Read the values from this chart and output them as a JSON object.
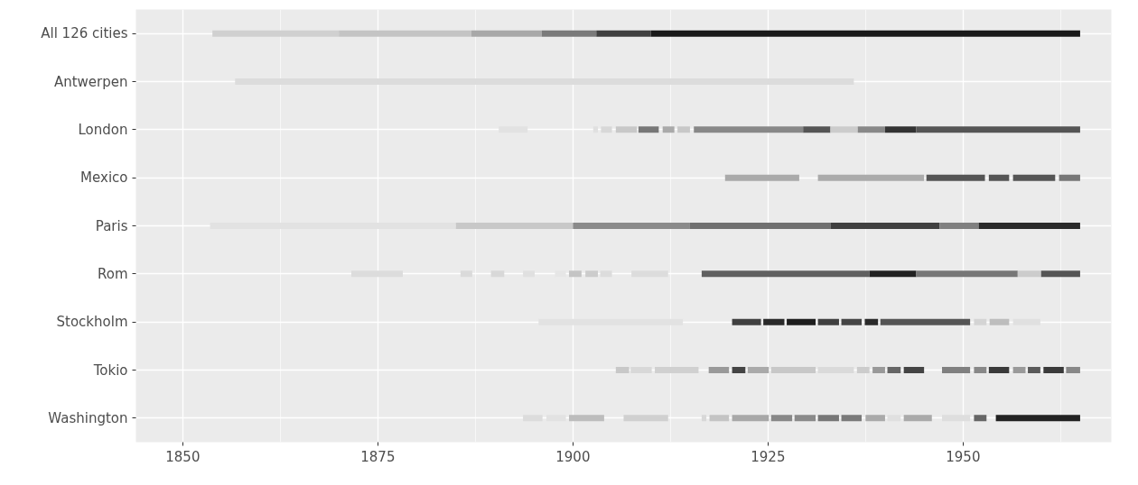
{
  "chart_data": {
    "type": "bar",
    "orientation": "horizontal",
    "grid": true,
    "categories": [
      "All 126 cities",
      "Antwerpen",
      "London",
      "Mexico",
      "Paris",
      "Rom",
      "Stockholm",
      "Tokio",
      "Washington"
    ],
    "xlim": [
      1844,
      1969
    ],
    "xticks": [
      1850,
      1875,
      1900,
      1925,
      1950
    ],
    "series": [
      {
        "base": [
          1853.8,
          1856.7,
          1890.5,
          1919.5,
          1853.5,
          1871.6,
          1895.6,
          1905.5,
          1893.6
        ],
        "values": [
          16.2,
          79.3,
          3.7,
          9.5,
          31.5,
          6.6,
          18.5,
          1.7,
          2.5
        ],
        "colors": [
          "#d0d0d0",
          "#dcdcdc",
          "#e2e2e2",
          "#aaaaaa",
          "#e2e2e2",
          "#dcdcdc",
          "#e2e2e2",
          "#c8c8c8",
          "#dcdcdc"
        ]
      },
      {
        "base": [
          1870,
          null,
          1902.6,
          1931.4,
          1885,
          1885.6,
          1920.4,
          1907.4,
          1896.6
        ],
        "values": [
          17,
          null,
          0.6,
          13.6,
          15,
          1.5,
          3.7,
          2.7,
          2.5
        ],
        "colors": [
          "#c4c4c4",
          null,
          "#e0e0e0",
          "#ababab",
          "#c8c8c8",
          "#dadada",
          "#404040",
          "#d8d8d8",
          "#e2e2e2"
        ]
      },
      {
        "base": [
          1887,
          null,
          1903.6,
          1945.3,
          1900,
          1889.5,
          1924.4,
          1910.5,
          1899.5
        ],
        "values": [
          9,
          null,
          1.4,
          7.5,
          15,
          1.7,
          2.7,
          5.6,
          4.5
        ],
        "colors": [
          "#a8a8a8",
          null,
          "#d8d8d8",
          "#555555",
          "#8a8a8a",
          "#d8d8d8",
          "#2a2a2a",
          "#d0d0d0",
          "#bdbdbd"
        ]
      },
      {
        "base": [
          1896,
          null,
          1905.5,
          1953.3,
          1915,
          1893.6,
          1927.4,
          1917.4,
          1906.5
        ],
        "values": [
          7,
          null,
          2.7,
          2.6,
          18,
          1.5,
          3.7,
          2.6,
          5.7
        ],
        "colors": [
          "#7a7a7a",
          null,
          "#c8c8c8",
          "#555555",
          "#707070",
          "#e0e0e0",
          "#1e1e1e",
          "#999999",
          "#d0d0d0"
        ]
      },
      {
        "base": [
          1903,
          null,
          1908.4,
          1956.4,
          1933,
          1897.7,
          1931.4,
          1920.4,
          1916.5
        ],
        "values": [
          7,
          null,
          2.6,
          5.4,
          14,
          1.4,
          2.7,
          1.7,
          0.6
        ],
        "colors": [
          "#404040",
          null,
          "#777777",
          "#555555",
          "#404040",
          "#e6e6e6",
          "#404040",
          "#444444",
          "#d8d8d8"
        ]
      },
      {
        "base": [
          1910,
          null,
          1911.5,
          1962.3,
          1947,
          1899.5,
          1934.4,
          1922.4,
          1917.5
        ],
        "values": [
          55,
          null,
          1.5,
          2.7,
          5,
          1.6,
          2.6,
          2.7,
          2.5
        ],
        "colors": [
          "#1a1a1a",
          null,
          "#aaaaaa",
          "#777777",
          "#808080",
          "#c4c4c4",
          "#454545",
          "#aaaaaa",
          "#c4c4c4"
        ]
      },
      {
        "base": [
          null,
          null,
          1913.4,
          null,
          1952,
          1901.6,
          1937.4,
          1925.4,
          1920.4
        ],
        "values": [
          null,
          null,
          1.6,
          null,
          13,
          1.6,
          1.7,
          5.7,
          4.7
        ],
        "colors": [
          null,
          null,
          "#c8c8c8",
          null,
          "#2a2a2a",
          "#cccccc",
          "#2a2a2a",
          "#c8c8c8",
          "#a8a8a8"
        ]
      },
      {
        "base": [
          null,
          null,
          1915.5,
          null,
          null,
          1903.5,
          1939.4,
          1931.4,
          1925.4
        ],
        "values": [
          null,
          null,
          14,
          null,
          null,
          1.5,
          11.5,
          4.6,
          2.7
        ],
        "colors": [
          null,
          null,
          "#888888",
          null,
          null,
          "#dcdcdc",
          "#555555",
          "#dadada",
          "#888888"
        ]
      },
      {
        "base": [
          null,
          null,
          1929.5,
          null,
          null,
          1907.5,
          1951.4,
          1936.4,
          1928.4
        ],
        "values": [
          null,
          null,
          3.5,
          null,
          null,
          4.7,
          1.6,
          1.6,
          2.7
        ],
        "colors": [
          null,
          null,
          "#555555",
          null,
          null,
          "#dcdcdc",
          "#d4d4d4",
          "#cccccc",
          "#8a8a8a"
        ]
      },
      {
        "base": [
          null,
          null,
          1933,
          null,
          null,
          1916.5,
          1953.4,
          1938.4,
          1931.4
        ],
        "values": [
          null,
          null,
          3.5,
          null,
          null,
          21.5,
          2.5,
          1.6,
          2.7
        ],
        "colors": [
          null,
          null,
          "#cccccc",
          null,
          null,
          "#606060",
          "#bdbdbd",
          "#999999",
          "#777777"
        ]
      },
      {
        "base": [
          null,
          null,
          1936.5,
          null,
          null,
          1938,
          1956.4,
          1940.3,
          1934.4
        ],
        "values": [
          null,
          null,
          3.5,
          null,
          null,
          6,
          3.5,
          1.7,
          2.6
        ],
        "colors": [
          null,
          null,
          "#888888",
          null,
          null,
          "#222222",
          "#e0e0e0",
          "#666666",
          "#7a7a7a"
        ]
      },
      {
        "base": [
          null,
          null,
          1940,
          null,
          null,
          1944,
          null,
          1942.4,
          1937.5
        ],
        "values": [
          null,
          null,
          4,
          null,
          null,
          13,
          null,
          2.6,
          2.5
        ],
        "colors": [
          null,
          null,
          "#333333",
          null,
          null,
          "#777777",
          null,
          "#444444",
          "#aaaaaa"
        ]
      },
      {
        "base": [
          null,
          null,
          1944,
          null,
          null,
          1957,
          null,
          1947.3,
          1940.3
        ],
        "values": [
          null,
          null,
          21,
          null,
          null,
          3,
          null,
          3.6,
          1.7
        ],
        "colors": [
          null,
          null,
          "#555555",
          null,
          null,
          "#cccccc",
          null,
          "#808080",
          "#e0e0e0"
        ]
      },
      {
        "base": [
          null,
          null,
          null,
          null,
          null,
          1960,
          null,
          1951.4,
          1942.4
        ],
        "values": [
          null,
          null,
          null,
          null,
          null,
          5,
          null,
          1.6,
          3.6
        ],
        "colors": [
          null,
          null,
          null,
          null,
          null,
          "#555555",
          null,
          "#888888",
          "#aaaaaa"
        ]
      },
      {
        "base": [
          null,
          null,
          null,
          null,
          null,
          null,
          null,
          1953.3,
          1947.3
        ],
        "values": [
          null,
          null,
          null,
          null,
          null,
          null,
          null,
          2.6,
          3.6
        ],
        "colors": [
          null,
          null,
          null,
          null,
          null,
          null,
          null,
          "#3a3a3a",
          "#dedede"
        ]
      },
      {
        "base": [
          null,
          null,
          null,
          null,
          null,
          null,
          null,
          1956.4,
          1951.4
        ],
        "values": [
          null,
          null,
          null,
          null,
          null,
          null,
          null,
          1.6,
          1.6
        ],
        "colors": [
          null,
          null,
          null,
          null,
          null,
          null,
          null,
          "#9a9a9a",
          "#666666"
        ]
      },
      {
        "base": [
          null,
          null,
          null,
          null,
          null,
          null,
          null,
          1958.3,
          1954.2
        ],
        "values": [
          null,
          null,
          null,
          null,
          null,
          null,
          null,
          1.6,
          10.8
        ],
        "colors": [
          null,
          null,
          null,
          null,
          null,
          null,
          null,
          "#5a5a5a",
          "#222222"
        ]
      },
      {
        "base": [
          null,
          null,
          null,
          null,
          null,
          null,
          null,
          1960.3,
          null
        ],
        "values": [
          null,
          null,
          null,
          null,
          null,
          null,
          null,
          2.6,
          null
        ],
        "colors": [
          null,
          null,
          null,
          null,
          null,
          null,
          null,
          "#3a3a3a",
          null
        ]
      },
      {
        "base": [
          null,
          null,
          null,
          null,
          null,
          null,
          null,
          1963.2,
          null
        ],
        "values": [
          null,
          null,
          null,
          null,
          null,
          null,
          null,
          1.8,
          null
        ],
        "colors": [
          null,
          null,
          null,
          null,
          null,
          null,
          null,
          "#888888",
          null
        ]
      }
    ]
  }
}
